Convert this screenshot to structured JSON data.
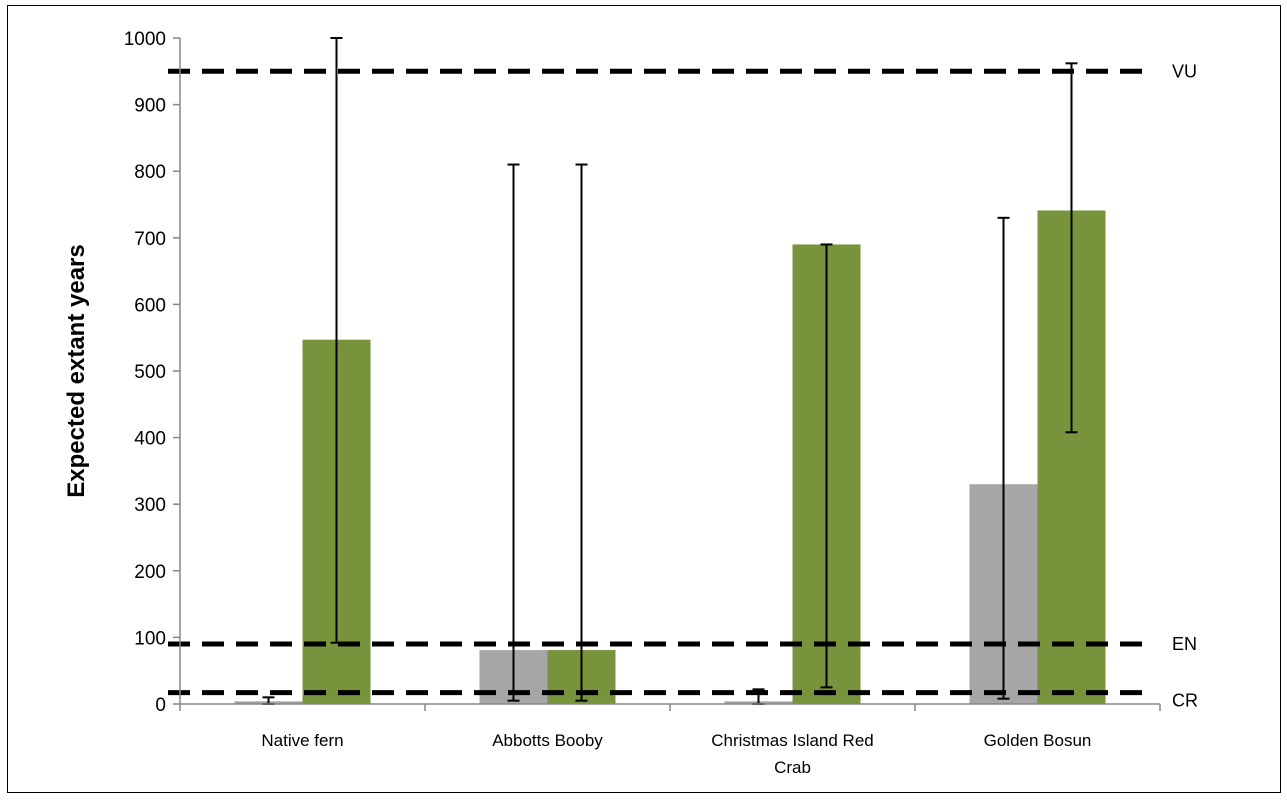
{
  "chart_data": {
    "type": "bar",
    "ylabel": "Expected extant years",
    "xlabel": "",
    "title": "",
    "ylim": [
      0,
      1000
    ],
    "yticks": [
      0,
      100,
      200,
      300,
      400,
      500,
      600,
      700,
      800,
      900,
      1000
    ],
    "categories": [
      [
        "Native fern"
      ],
      [
        "Abbotts Booby"
      ],
      [
        "Christmas Island Red",
        "Crab"
      ],
      [
        "Golden Bosun"
      ]
    ],
    "series": [
      {
        "color": "#a6a6a6",
        "values": [
          4,
          81,
          4,
          330
        ],
        "error_low": [
          0,
          5,
          0,
          8
        ],
        "error_high": [
          10,
          810,
          22,
          730
        ]
      },
      {
        "color": "#77933c",
        "values": [
          547,
          81,
          690,
          741
        ],
        "error_low": [
          92,
          5,
          25,
          408
        ],
        "error_high": [
          1000,
          810,
          690,
          962
        ]
      }
    ],
    "thresholds": [
      {
        "label": "VU",
        "value": 950
      },
      {
        "label": "EN",
        "value": 90
      },
      {
        "label": "CR",
        "value": 17
      }
    ],
    "grid": false,
    "legend": "none"
  }
}
